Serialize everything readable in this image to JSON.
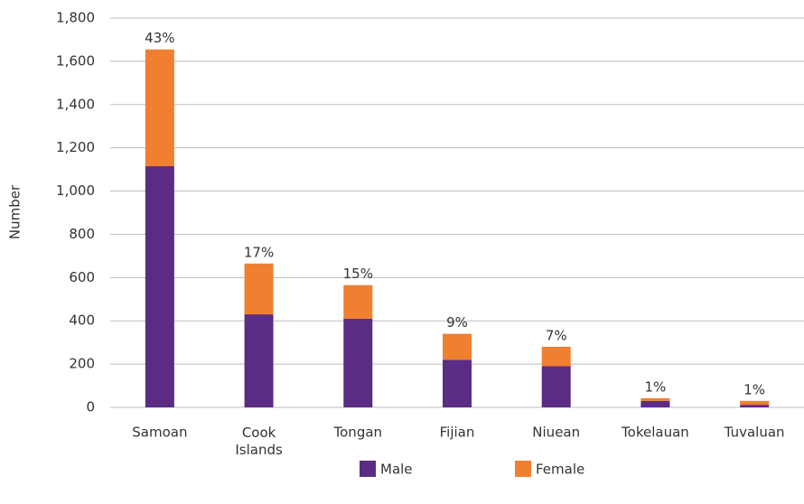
{
  "chart_data": {
    "type": "stacked_bar",
    "y_label": "Number",
    "categories": [
      "Samoan",
      "Cook Islands",
      "Tongan",
      "Fijian",
      "Niuean",
      "Tokelauan",
      "Tuvaluan"
    ],
    "series": [
      {
        "name": "Male",
        "color": "#5b2c83",
        "values": [
          1115,
          430,
          410,
          220,
          190,
          30,
          12
        ]
      },
      {
        "name": "Female",
        "color": "#f07f2f",
        "values": [
          540,
          235,
          155,
          120,
          90,
          12,
          18
        ]
      }
    ],
    "share_labels": [
      "43%",
      "17%",
      "15%",
      "9%",
      "7%",
      "1%",
      "1%"
    ],
    "ylim": [
      0,
      1800
    ],
    "yticks": [
      0,
      200,
      400,
      600,
      800,
      {
        "value": 1000,
        "label": "1,000"
      },
      {
        "value": 1200,
        "label": "1,200"
      },
      {
        "value": 1400,
        "label": "1,400"
      },
      {
        "value": 1600,
        "label": "1,600"
      },
      {
        "value": 1800,
        "label": "1,800"
      }
    ],
    "grid": true,
    "legend": "bottom"
  }
}
